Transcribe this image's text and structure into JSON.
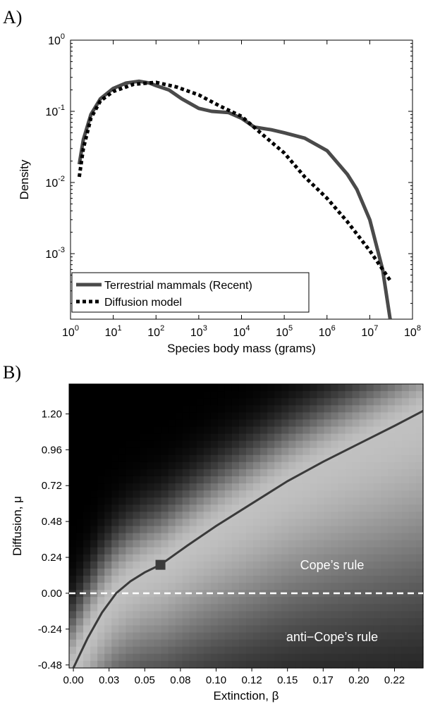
{
  "panels": {
    "a_label": "A)",
    "b_label": "B)"
  },
  "chart_data": [
    {
      "type": "line",
      "xlabel": "Species body mass (grams)",
      "ylabel": "Density",
      "x_scale": "log",
      "y_scale": "log",
      "xlim": [
        1,
        100000000
      ],
      "ylim": [
        0.00012,
        1
      ],
      "x_tick_base": "10",
      "x_tick_exps": [
        "0",
        "1",
        "2",
        "3",
        "4",
        "5",
        "6",
        "7",
        "8"
      ],
      "y_tick_base": "10",
      "y_tick_exps": [
        "0",
        "-1",
        "-2",
        "-3"
      ],
      "legend_position": "bottom-left",
      "series": [
        {
          "name": "Terrestrial mammals (Recent)",
          "style": "solid",
          "color": "#4a4a4a",
          "points": [
            [
              1.6,
              0.018
            ],
            [
              2,
              0.04
            ],
            [
              3,
              0.09
            ],
            [
              5,
              0.15
            ],
            [
              10,
              0.21
            ],
            [
              20,
              0.25
            ],
            [
              40,
              0.265
            ],
            [
              70,
              0.25
            ],
            [
              100,
              0.23
            ],
            [
              200,
              0.2
            ],
            [
              400,
              0.15
            ],
            [
              1000,
              0.11
            ],
            [
              2000,
              0.1
            ],
            [
              5000,
              0.096
            ],
            [
              10000,
              0.08
            ],
            [
              20000,
              0.06
            ],
            [
              50000,
              0.055
            ],
            [
              100000,
              0.05
            ],
            [
              300000,
              0.042
            ],
            [
              1000000,
              0.028
            ],
            [
              3000000,
              0.013
            ],
            [
              5000000,
              0.008
            ],
            [
              10000000,
              0.003
            ],
            [
              20000000,
              0.0006
            ],
            [
              30000000,
              0.00012
            ]
          ]
        },
        {
          "name": "Diffusion model",
          "style": "dotted",
          "color": "#000000",
          "points": [
            [
              1.6,
              0.012
            ],
            [
              2,
              0.03
            ],
            [
              3,
              0.08
            ],
            [
              5,
              0.14
            ],
            [
              10,
              0.19
            ],
            [
              30,
              0.24
            ],
            [
              100,
              0.255
            ],
            [
              300,
              0.22
            ],
            [
              1000,
              0.17
            ],
            [
              3000,
              0.12
            ],
            [
              10000,
              0.085
            ],
            [
              30000,
              0.048
            ],
            [
              100000,
              0.026
            ],
            [
              300000,
              0.012
            ],
            [
              1000000,
              0.006
            ],
            [
              3000000,
              0.0028
            ],
            [
              10000000,
              0.0011
            ],
            [
              30000000,
              0.00042
            ]
          ]
        }
      ]
    },
    {
      "type": "heatmap",
      "xlabel": "Extinction, β",
      "ylabel": "Diffusion, μ",
      "xlim": [
        -0.003,
        0.245
      ],
      "ylim": [
        -0.5,
        1.4
      ],
      "x_ticks": [
        "0.00",
        "0.03",
        "0.05",
        "0.08",
        "0.10",
        "0.12",
        "0.15",
        "0.17",
        "0.20",
        "0.22"
      ],
      "x_tick_values": [
        0.0,
        0.025,
        0.05,
        0.075,
        0.1,
        0.125,
        0.15,
        0.175,
        0.2,
        0.225
      ],
      "y_ticks": [
        "1.20",
        "0.96",
        "0.72",
        "0.48",
        "0.24",
        "0.00",
        "-0.24",
        "-0.48"
      ],
      "y_tick_values": [
        1.2,
        0.96,
        0.72,
        0.48,
        0.24,
        0.0,
        -0.24,
        -0.48
      ],
      "grid_cols": 50,
      "grid_rows": 40,
      "annotations": [
        "Cope’s rule",
        "anti−Cope’s rule"
      ],
      "best_fit_point": {
        "beta": 0.061,
        "mu": 0.19
      },
      "curve": {
        "color": "#3a3a3a",
        "points": [
          [
            0.0,
            -0.5
          ],
          [
            0.01,
            -0.3
          ],
          [
            0.02,
            -0.13
          ],
          [
            0.03,
            0.0
          ],
          [
            0.04,
            0.08
          ],
          [
            0.05,
            0.14
          ],
          [
            0.061,
            0.19
          ],
          [
            0.08,
            0.32
          ],
          [
            0.1,
            0.45
          ],
          [
            0.125,
            0.6
          ],
          [
            0.15,
            0.75
          ],
          [
            0.175,
            0.88
          ],
          [
            0.2,
            1.0
          ],
          [
            0.225,
            1.12
          ],
          [
            0.245,
            1.22
          ]
        ]
      },
      "zero_line": {
        "mu": 0.0,
        "style": "dashed",
        "color": "#ffffff"
      }
    }
  ]
}
